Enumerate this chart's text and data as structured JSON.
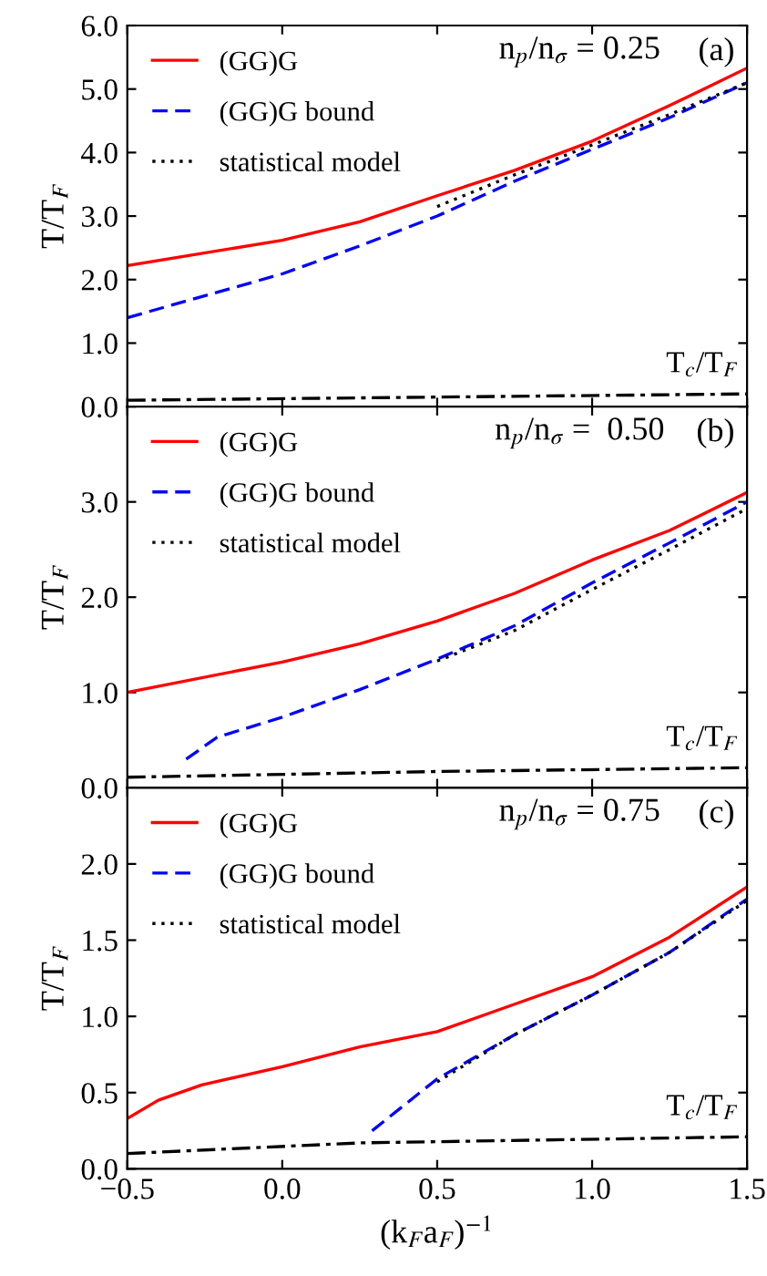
{
  "chart_data": [
    {
      "type": "line",
      "ylabel": "T/T$_{F}$",
      "xlim": [
        -0.5,
        1.5
      ],
      "ylim": [
        0,
        6
      ],
      "xticks": [
        -0.5,
        0,
        0.5,
        1.0,
        1.5
      ],
      "yticks": [
        {
          "value": 0,
          "label": "0.0"
        },
        {
          "value": 1,
          "label": "1.0"
        },
        {
          "value": 2,
          "label": "2.0"
        },
        {
          "value": 3,
          "label": "3.0"
        },
        {
          "value": 4,
          "label": "4.0"
        },
        {
          "value": 5,
          "label": "5.0"
        },
        {
          "value": 6,
          "label": "6.0"
        }
      ],
      "tick_labels": "y",
      "legend": "top left",
      "grid": false,
      "annotations": [
        "n$_{p}$/n$_{σ}$ = 0.25",
        "(a)"
      ],
      "series": [
        {
          "name": "(GG)G",
          "color": "#ff0000",
          "line_style": "solid",
          "x": [
            -0.5,
            0,
            0.25,
            0.5,
            0.75,
            1.0,
            1.25,
            1.5
          ],
          "values": [
            2.22,
            2.62,
            2.91,
            3.32,
            3.72,
            4.18,
            4.74,
            5.33
          ]
        },
        {
          "name": "(GG)G bound",
          "color": "#0000ff",
          "line_style": "dashed",
          "x": [
            -0.5,
            0,
            0.25,
            0.5,
            0.75,
            1.0,
            1.25,
            1.5
          ],
          "values": [
            1.4,
            2.09,
            2.53,
            3.0,
            3.55,
            4.05,
            4.55,
            5.1
          ]
        },
        {
          "name": "statistical model",
          "color": "#000000",
          "line_style": "dotted",
          "x": [
            0.5,
            0.75,
            1.0,
            1.25,
            1.5
          ],
          "values": [
            3.15,
            3.65,
            4.12,
            4.6,
            5.1
          ]
        },
        {
          "name": "T$_{c}$/T$_{F}$",
          "color": "#000000",
          "line_style": "dashdot",
          "x": [
            -0.5,
            0.5,
            1.5
          ],
          "values": [
            0.1,
            0.15,
            0.2
          ]
        }
      ]
    },
    {
      "type": "line",
      "ylabel": "T/T$_{F}$",
      "xlim": [
        -0.5,
        1.5
      ],
      "ylim": [
        0,
        4
      ],
      "xticks": [
        -0.5,
        0,
        0.5,
        1.0,
        1.5
      ],
      "yticks": [
        {
          "value": 0,
          "label": "0.0"
        },
        {
          "value": 1,
          "label": "1.0"
        },
        {
          "value": 2,
          "label": "2.0"
        },
        {
          "value": 3,
          "label": "3.0"
        },
        {
          "value": 4,
          "label": null
        }
      ],
      "tick_labels": "y",
      "legend": "top left",
      "grid": false,
      "annotations": [
        "n$_{p}$/n$_{σ}$ =  0.50",
        "(b)"
      ],
      "series": [
        {
          "name": "(GG)G",
          "color": "#ff0000",
          "line_style": "solid",
          "x": [
            -0.5,
            0,
            0.25,
            0.5,
            0.75,
            1.0,
            1.25,
            1.5
          ],
          "values": [
            1.0,
            1.32,
            1.51,
            1.75,
            2.04,
            2.39,
            2.7,
            3.1
          ]
        },
        {
          "name": "(GG)G bound",
          "color": "#0000ff",
          "line_style": "dashed",
          "x": [
            -0.31,
            -0.21,
            0,
            0.25,
            0.5,
            0.75,
            1.0,
            1.25,
            1.5
          ],
          "values": [
            0.3,
            0.53,
            0.74,
            1.03,
            1.35,
            1.7,
            2.15,
            2.57,
            3.0
          ]
        },
        {
          "name": "statistical model",
          "color": "#000000",
          "line_style": "dotted",
          "x": [
            0.5,
            0.75,
            1.0,
            1.25,
            1.5
          ],
          "values": [
            1.33,
            1.65,
            2.08,
            2.5,
            2.93
          ]
        },
        {
          "name": "T$_{c}$/T$_{F}$",
          "color": "#000000",
          "line_style": "dashdot",
          "x": [
            -0.5,
            0.5,
            1.5
          ],
          "values": [
            0.11,
            0.17,
            0.21
          ]
        }
      ]
    },
    {
      "type": "line",
      "ylabel": "T/T$_{F}$",
      "xlabel": "(k$_{F}$a$_{F}$)$^{−1}$",
      "xlim": [
        -0.5,
        1.5
      ],
      "ylim": [
        0,
        2.5
      ],
      "xticks": [
        {
          "value": -0.5,
          "label": "−0.5"
        },
        {
          "value": 0,
          "label": "0.0"
        },
        {
          "value": 0.5,
          "label": "0.5"
        },
        {
          "value": 1.0,
          "label": "1.0"
        },
        {
          "value": 1.5,
          "label": "1.5"
        }
      ],
      "yticks": [
        {
          "value": 0,
          "label": "0.0"
        },
        {
          "value": 0.5,
          "label": "0.5"
        },
        {
          "value": 1.0,
          "label": "1.0"
        },
        {
          "value": 1.5,
          "label": "1.5"
        },
        {
          "value": 2.0,
          "label": "2.0"
        }
      ],
      "legend": "top left",
      "grid": false,
      "annotations": [
        "n$_{p}$/n$_{σ}$ = 0.75",
        "(c)"
      ],
      "series": [
        {
          "name": "(GG)G",
          "color": "#ff0000",
          "line_style": "solid",
          "x": [
            -0.5,
            -0.4,
            -0.26,
            0,
            0.25,
            0.5,
            0.75,
            1.0,
            1.25,
            1.5
          ],
          "values": [
            0.33,
            0.45,
            0.55,
            0.67,
            0.8,
            0.9,
            1.08,
            1.26,
            1.52,
            1.85
          ]
        },
        {
          "name": "(GG)G bound",
          "color": "#0000ff",
          "line_style": "dashed",
          "x": [
            0.29,
            0.5,
            0.75,
            1.0,
            1.25,
            1.5
          ],
          "values": [
            0.25,
            0.59,
            0.88,
            1.14,
            1.42,
            1.77
          ]
        },
        {
          "name": "statistical model",
          "color": "#000000",
          "line_style": "dotted",
          "x": [
            0.5,
            0.75,
            1.0,
            1.25,
            1.5
          ],
          "values": [
            0.57,
            0.88,
            1.14,
            1.42,
            1.76
          ]
        },
        {
          "name": "T$_{c}$/T$_{F}$",
          "color": "#000000",
          "line_style": "dashdot",
          "x": [
            -0.5,
            0.25,
            1.5
          ],
          "values": [
            0.1,
            0.17,
            0.21
          ]
        }
      ]
    }
  ]
}
